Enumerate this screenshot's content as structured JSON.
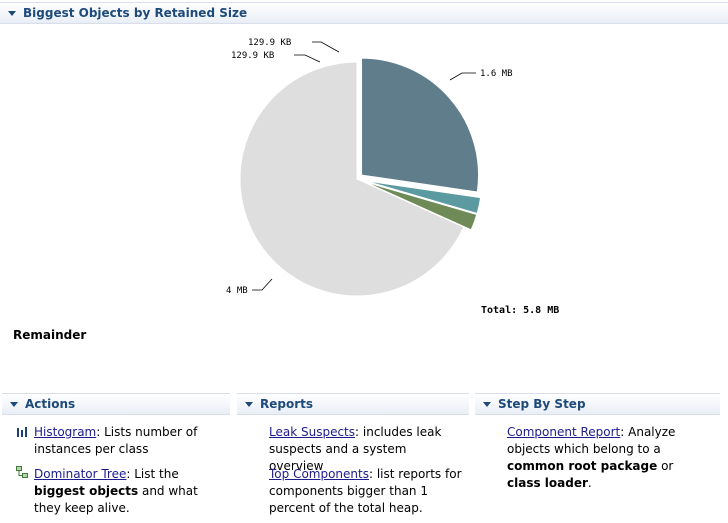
{
  "main_section": {
    "title": "Biggest Objects by Retained Size"
  },
  "chart_data": {
    "type": "pie",
    "title": "",
    "slices": [
      {
        "label": "1.6 MB",
        "value": 1.6,
        "color": "#607d8b"
      },
      {
        "label": "129.9 KB",
        "value": 0.1299,
        "color": "#5b9aa0"
      },
      {
        "label": "129.9 KB",
        "value": 0.1299,
        "color": "#6e8b57"
      },
      {
        "label": "4 MB",
        "value": 4.0,
        "color": "#dedede"
      }
    ],
    "total_label": "Total: 5.8 MB",
    "legend_label": "Remainder"
  },
  "actions": {
    "title": "Actions",
    "histogram": {
      "link": "Histogram",
      "text": ": Lists number of instances per class"
    },
    "dominator": {
      "link": "Dominator Tree",
      "text1": ": List the ",
      "bold": "biggest objects",
      "text2": " and what they keep alive."
    }
  },
  "reports": {
    "title": "Reports",
    "leak": {
      "link": "Leak Suspects",
      "text": ": includes leak suspects and a system overview"
    },
    "top": {
      "link": "Top Components",
      "text": ": list reports for components bigger than 1 percent of the total heap."
    }
  },
  "step_by_step": {
    "title": "Step By Step",
    "component": {
      "link": "Component Report",
      "text1": ": Analyze objects which belong to a ",
      "bold1": "common root package",
      "text2": " or ",
      "bold2": "class loader",
      "text3": "."
    }
  }
}
